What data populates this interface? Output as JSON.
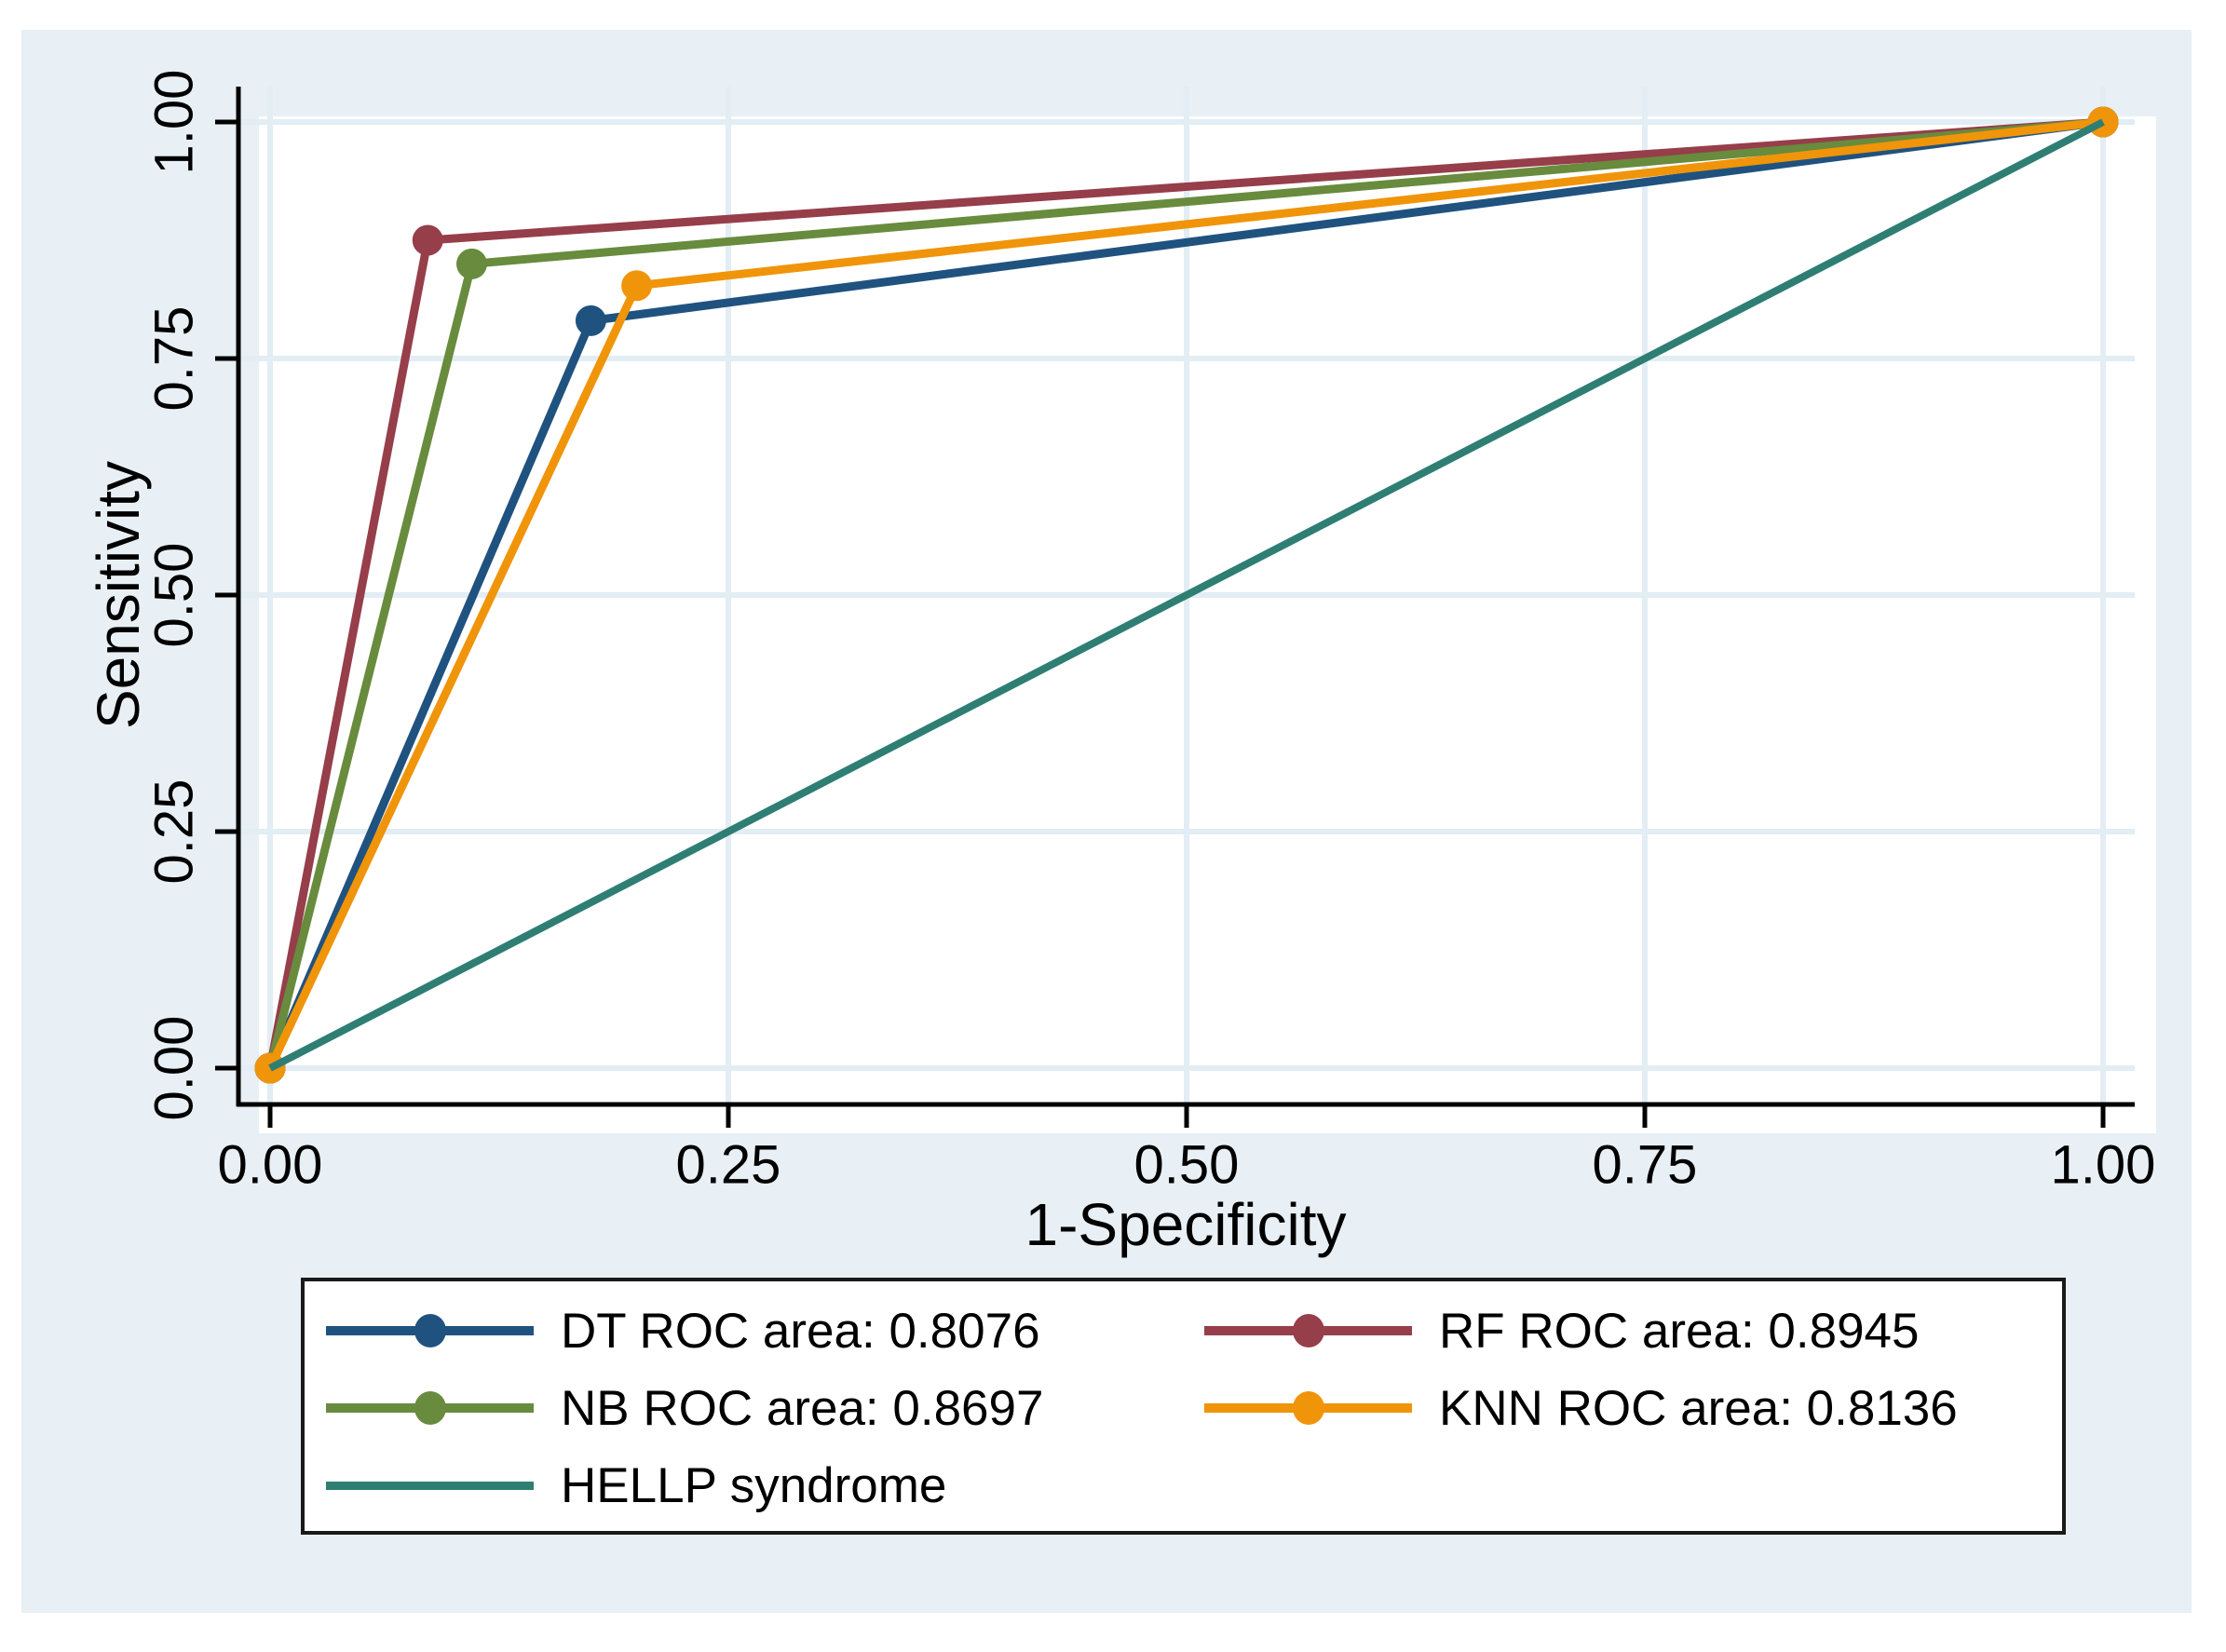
{
  "chart_data": {
    "type": "line",
    "title": "",
    "xlabel": "1-Specificity",
    "ylabel": "Sensitivity",
    "xlim": [
      0,
      1
    ],
    "ylim": [
      0,
      1
    ],
    "grid": true,
    "legend_position": "bottom",
    "background_color": "#e8f0f5",
    "plot_background_color": "#ffffff",
    "gridline_color": "#e2edf4",
    "axis_color": "#000000",
    "x_ticks": [
      {
        "label": "0.00",
        "value": 0
      },
      {
        "label": "0.25",
        "value": 0.25
      },
      {
        "label": "0.50",
        "value": 0.5
      },
      {
        "label": "0.75",
        "value": 0.75
      },
      {
        "label": "1.00",
        "value": 1
      }
    ],
    "y_ticks": [
      {
        "label": "0.00",
        "value": 0
      },
      {
        "label": "0.25",
        "value": 0.25
      },
      {
        "label": "0.50",
        "value": 0.5
      },
      {
        "label": "0.75",
        "value": 0.75
      },
      {
        "label": "1.00",
        "value": 1
      }
    ],
    "series": [
      {
        "name": "DT ROC area: 0.8076",
        "auc": 0.8076,
        "color": "#20527f",
        "marker": "circle",
        "points": [
          [
            0,
            0
          ],
          [
            0.175,
            0.79
          ],
          [
            1,
            1
          ]
        ]
      },
      {
        "name": "RF ROC area: 0.8945",
        "auc": 0.8945,
        "color": "#963e4a",
        "marker": "circle",
        "points": [
          [
            0,
            0
          ],
          [
            0.086,
            0.875
          ],
          [
            1,
            1
          ]
        ]
      },
      {
        "name": "NB ROC area: 0.8697",
        "auc": 0.8697,
        "color": "#688b3d",
        "marker": "circle",
        "points": [
          [
            0,
            0
          ],
          [
            0.11,
            0.85
          ],
          [
            1,
            1
          ]
        ]
      },
      {
        "name": "KNN ROC area: 0.8136",
        "auc": 0.8136,
        "color": "#f0940a",
        "marker": "circle",
        "points": [
          [
            0,
            0
          ],
          [
            0.2,
            0.827
          ],
          [
            1,
            1
          ]
        ]
      },
      {
        "name": "HELLP syndrome",
        "color": "#2f7e74",
        "marker": "none",
        "points": [
          [
            0,
            0
          ],
          [
            1,
            1
          ]
        ]
      }
    ]
  }
}
